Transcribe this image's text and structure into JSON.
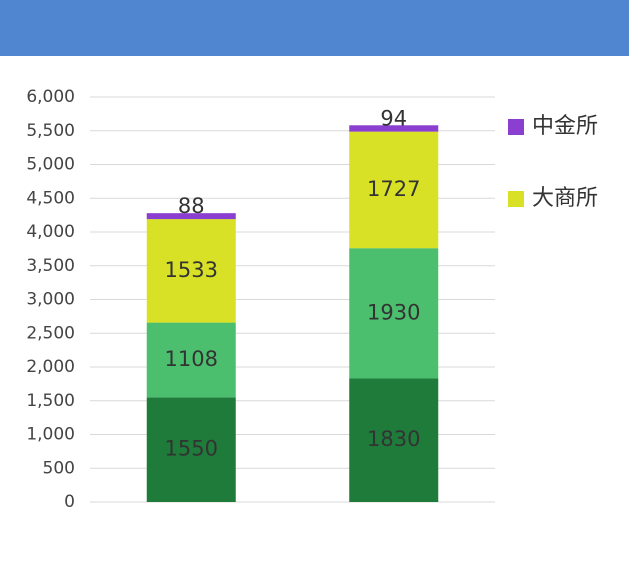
{
  "chart_data": {
    "type": "stacked_bar",
    "categories": [
      null,
      null
    ],
    "series": [
      {
        "color": "#1e7b3a",
        "values": [
          1550,
          1830
        ]
      },
      {
        "color": "#4cbf6f",
        "values": [
          1108,
          1930
        ]
      },
      {
        "name": "大商所",
        "color": "#d8e126",
        "values": [
          1533,
          1727
        ]
      },
      {
        "name": "中金所",
        "color": "#8a3fd1",
        "values": [
          88,
          94
        ]
      }
    ],
    "ylim": [
      0,
      6000
    ],
    "yticks": [
      {
        "value": 0,
        "label": "0"
      },
      {
        "value": 500,
        "label": "500"
      },
      {
        "value": 1000,
        "label": "1,000"
      },
      {
        "value": 1500,
        "label": "1,500"
      },
      {
        "value": 2000,
        "label": "2,000"
      },
      {
        "value": 2500,
        "label": "2,500"
      },
      {
        "value": 3000,
        "label": "3,000"
      },
      {
        "value": 3500,
        "label": "3,500"
      },
      {
        "value": 4000,
        "label": "4,000"
      },
      {
        "value": 4500,
        "label": "4,500"
      },
      {
        "value": 5000,
        "label": "5,000"
      },
      {
        "value": 5500,
        "label": "5,500"
      },
      {
        "value": 6000,
        "label": "6,000"
      }
    ],
    "grid": true
  }
}
